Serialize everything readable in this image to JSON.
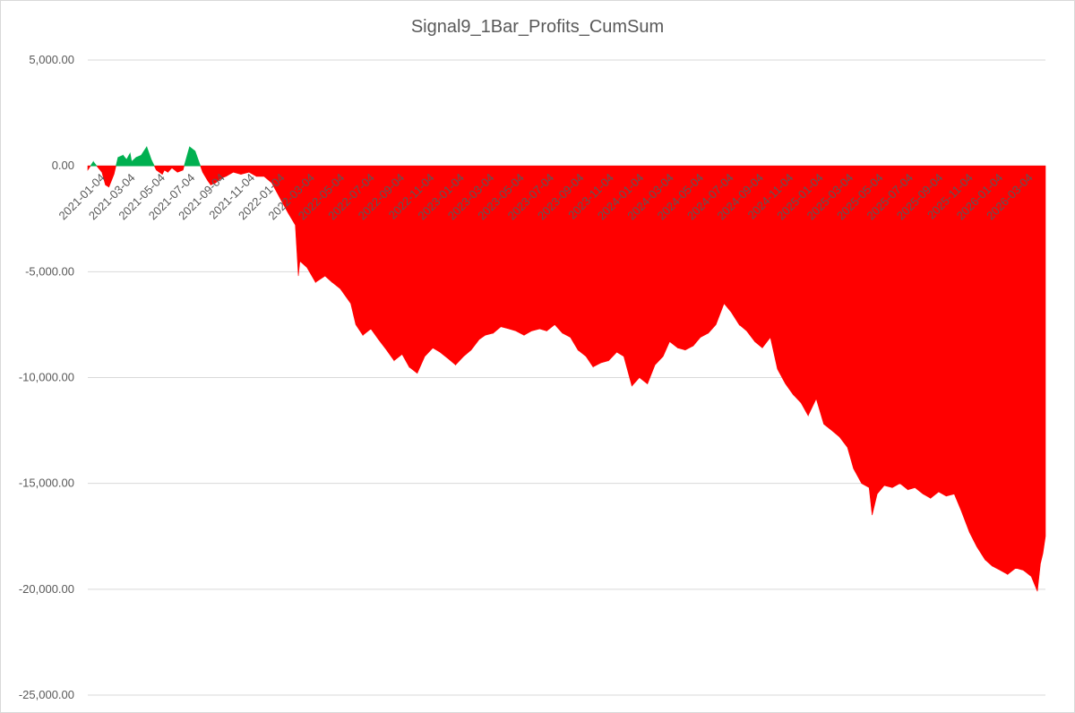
{
  "chart_data": {
    "type": "area",
    "title": "Signal9_1Bar_Profits_CumSum",
    "xlabel": "",
    "ylabel": "",
    "ylim": [
      -25000,
      5000
    ],
    "yticks": [
      5000,
      0,
      -5000,
      -10000,
      -15000,
      -20000,
      -25000
    ],
    "ytick_labels": [
      "5,000.00",
      "0.00",
      "-5,000.00",
      "-10,000.00",
      "-15,000.00",
      "-20,000.00",
      "-25,000.00"
    ],
    "xlim": [
      "2021-01-04",
      "2026-03-20"
    ],
    "xtick_labels": [
      "2021-01-04",
      "2021-03-04",
      "2021-05-04",
      "2021-07-04",
      "2021-09-04",
      "2021-11-04",
      "2022-01-04",
      "2022-03-04",
      "2022-05-04",
      "2022-07-04",
      "2022-09-04",
      "2022-11-04",
      "2023-01-04",
      "2023-03-04",
      "2023-05-04",
      "2023-07-04",
      "2023-09-04",
      "2023-11-04",
      "2024-01-04",
      "2024-03-04",
      "2024-05-04",
      "2024-07-04",
      "2024-09-04",
      "2024-11-04",
      "2025-01-04",
      "2025-03-04",
      "2025-05-04",
      "2025-07-04",
      "2025-09-04",
      "2025-11-04",
      "2026-01-04",
      "2026-03-04"
    ],
    "grid": true,
    "legend": "none",
    "colors": {
      "positive": "#00b050",
      "negative": "#ff0000",
      "grid": "#d9d9d9",
      "text": "#595959"
    },
    "series": [
      {
        "x": [
          "2021-01-04",
          "2021-01-15",
          "2021-01-25",
          "2021-02-01",
          "2021-02-08",
          "2021-02-15",
          "2021-02-25",
          "2021-03-05",
          "2021-03-15",
          "2021-03-22",
          "2021-03-29",
          "2021-04-01",
          "2021-04-10",
          "2021-04-20",
          "2021-05-01",
          "2021-05-10",
          "2021-05-20",
          "2021-06-01",
          "2021-06-05",
          "2021-06-12",
          "2021-06-20",
          "2021-07-01",
          "2021-07-12",
          "2021-07-25",
          "2021-08-05",
          "2021-08-20",
          "2021-08-30",
          "2021-09-05",
          "2021-09-15",
          "2021-09-25",
          "2021-10-05",
          "2021-10-20",
          "2021-11-04",
          "2021-11-20",
          "2021-12-05",
          "2021-12-20",
          "2022-01-04",
          "2022-01-20",
          "2022-02-05",
          "2022-02-20",
          "2022-02-26",
          "2022-03-01",
          "2022-03-15",
          "2022-04-01",
          "2022-04-20",
          "2022-05-04",
          "2022-05-20",
          "2022-06-10",
          "2022-06-20",
          "2022-07-04",
          "2022-07-20",
          "2022-08-04",
          "2022-08-20",
          "2022-09-04",
          "2022-09-20",
          "2022-10-04",
          "2022-10-20",
          "2022-11-04",
          "2022-11-20",
          "2022-12-04",
          "2022-12-20",
          "2023-01-04",
          "2023-01-20",
          "2023-02-04",
          "2023-02-20",
          "2023-03-04",
          "2023-03-20",
          "2023-04-04",
          "2023-04-20",
          "2023-05-04",
          "2023-05-20",
          "2023-06-04",
          "2023-06-20",
          "2023-07-04",
          "2023-07-20",
          "2023-08-04",
          "2023-08-20",
          "2023-09-04",
          "2023-09-20",
          "2023-10-04",
          "2023-10-20",
          "2023-11-04",
          "2023-11-20",
          "2023-12-04",
          "2023-12-20",
          "2024-01-04",
          "2024-01-20",
          "2024-02-04",
          "2024-02-20",
          "2024-03-04",
          "2024-03-20",
          "2024-04-04",
          "2024-04-20",
          "2024-05-04",
          "2024-05-20",
          "2024-06-04",
          "2024-06-20",
          "2024-07-04",
          "2024-07-20",
          "2024-08-04",
          "2024-08-20",
          "2024-09-04",
          "2024-09-20",
          "2024-10-04",
          "2024-10-20",
          "2024-11-04",
          "2024-11-20",
          "2024-12-04",
          "2024-12-20",
          "2025-01-04",
          "2025-01-20",
          "2025-02-04",
          "2025-02-20",
          "2025-03-04",
          "2025-03-20",
          "2025-04-04",
          "2025-04-10",
          "2025-04-20",
          "2025-05-04",
          "2025-05-20",
          "2025-06-04",
          "2025-06-20",
          "2025-07-04",
          "2025-07-20",
          "2025-08-04",
          "2025-08-20",
          "2025-09-04",
          "2025-09-20",
          "2025-10-04",
          "2025-10-20",
          "2025-11-04",
          "2025-11-20",
          "2025-12-04",
          "2025-12-20",
          "2026-01-04",
          "2026-01-20",
          "2026-02-04",
          "2026-02-20",
          "2026-03-04",
          "2026-03-10",
          "2026-03-15",
          "2026-03-20"
        ],
        "y": [
          -200,
          200,
          -100,
          -300,
          -900,
          -1000,
          -400,
          400,
          500,
          300,
          600,
          200,
          400,
          500,
          900,
          300,
          -200,
          -400,
          -200,
          -300,
          -100,
          -300,
          -200,
          900,
          700,
          -300,
          -700,
          -900,
          -800,
          -600,
          -500,
          -300,
          -400,
          -300,
          -500,
          -500,
          -800,
          -1500,
          -2200,
          -2800,
          -5200,
          -4500,
          -4800,
          -5500,
          -5200,
          -5500,
          -5800,
          -6500,
          -7500,
          -8000,
          -7700,
          -8200,
          -8700,
          -9200,
          -8900,
          -9500,
          -9800,
          -9000,
          -8600,
          -8800,
          -9100,
          -9400,
          -9000,
          -8700,
          -8200,
          -8000,
          -7900,
          -7600,
          -7700,
          -7800,
          -8000,
          -7800,
          -7700,
          -7800,
          -7500,
          -7900,
          -8100,
          -8700,
          -9000,
          -9500,
          -9300,
          -9200,
          -8800,
          -9000,
          -10400,
          -10000,
          -10300,
          -9400,
          -9000,
          -8300,
          -8600,
          -8700,
          -8500,
          -8100,
          -7900,
          -7500,
          -6500,
          -6900,
          -7500,
          -7800,
          -8300,
          -8600,
          -8100,
          -9600,
          -10300,
          -10800,
          -11200,
          -11800,
          -11000,
          -12200,
          -12500,
          -12800,
          -13300,
          -14300,
          -15000,
          -15200,
          -16500,
          -15500,
          -15100,
          -15200,
          -15000,
          -15300,
          -15200,
          -15500,
          -15700,
          -15400,
          -15600,
          -15500,
          -16300,
          -17300,
          -18000,
          -18600,
          -18900,
          -19100,
          -19300,
          -19000,
          -19100,
          -19400,
          -20100,
          -18800,
          -18300,
          -17500
        ]
      }
    ]
  }
}
